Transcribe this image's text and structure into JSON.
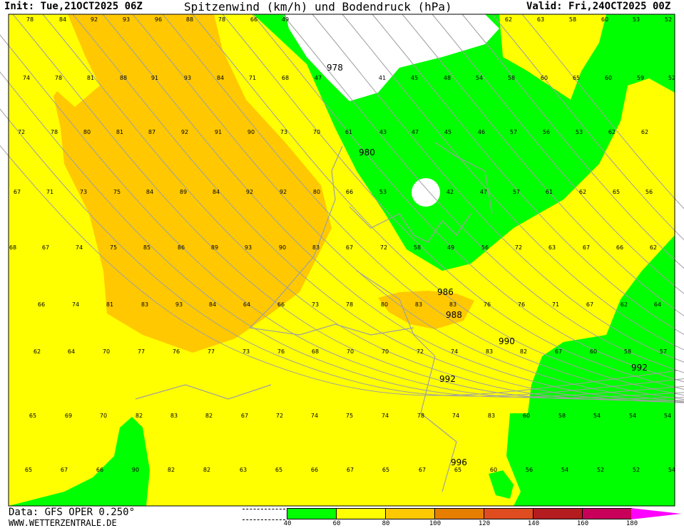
{
  "header": {
    "init": "Init: Tue,21OCT2025 06Z",
    "title": "Spitzenwind (km/h) und Bodendruck (hPa)",
    "valid": "Valid: Fri,24OCT2025 00Z"
  },
  "footer": {
    "data": "Data: GFS OPER 0.250°",
    "site": "WWW.WETTERZENTRALE.DE"
  },
  "legend": {
    "ticks": [
      "40",
      "60",
      "80",
      "100",
      "120",
      "140",
      "160",
      "180"
    ],
    "colors": [
      "#00ff00",
      "#ffff00",
      "#ffc800",
      "#e67e00",
      "#df4c20",
      "#b41c20",
      "#c8005a",
      "#ff00ff"
    ]
  },
  "map_colors": {
    "calm": "#ffffff",
    "green": "#00ff00",
    "yellow": "#ffff00",
    "orange": "#ffc800",
    "isobar": "#a0a0a0",
    "border": "#a0a0a0"
  },
  "isobar_labels": [
    "978",
    "980",
    "986",
    "988",
    "990",
    "992",
    "992",
    "996"
  ],
  "wind_rows": [
    [
      "78",
      "84",
      "92",
      "93",
      "96",
      "88",
      "78",
      "66",
      "49",
      "62",
      "63",
      "58",
      "60",
      "53",
      "52"
    ],
    [
      "74",
      "78",
      "81",
      "88",
      "91",
      "93",
      "84",
      "71",
      "68",
      "47",
      "41",
      "45",
      "48",
      "54",
      "58",
      "60",
      "65",
      "60",
      "59",
      "52"
    ],
    [
      "72",
      "78",
      "80",
      "81",
      "87",
      "92",
      "91",
      "90",
      "73",
      "70",
      "61",
      "43",
      "47",
      "45",
      "46",
      "57",
      "56",
      "53",
      "62",
      "62"
    ],
    [
      "67",
      "71",
      "73",
      "75",
      "84",
      "89",
      "84",
      "92",
      "92",
      "80",
      "66",
      "53",
      "42",
      "47",
      "57",
      "61",
      "62",
      "65",
      "56"
    ],
    [
      "68",
      "67",
      "74",
      "75",
      "85",
      "86",
      "89",
      "93",
      "90",
      "83",
      "67",
      "72",
      "58",
      "49",
      "56",
      "72",
      "63",
      "67",
      "66",
      "62"
    ],
    [
      "66",
      "74",
      "81",
      "83",
      "93",
      "84",
      "64",
      "66",
      "73",
      "78",
      "80",
      "83",
      "83",
      "76",
      "76",
      "71",
      "67",
      "62",
      "64"
    ],
    [
      "62",
      "64",
      "70",
      "77",
      "76",
      "77",
      "73",
      "76",
      "68",
      "70",
      "70",
      "72",
      "74",
      "83",
      "82",
      "67",
      "60",
      "58",
      "57"
    ],
    [
      "65",
      "69",
      "70",
      "82",
      "83",
      "82",
      "67",
      "72",
      "74",
      "75",
      "74",
      "78",
      "74",
      "83",
      "60",
      "58",
      "54",
      "54",
      "54"
    ],
    [
      "65",
      "67",
      "66",
      "90",
      "82",
      "82",
      "63",
      "65",
      "66",
      "67",
      "65",
      "67",
      "65",
      "60",
      "56",
      "54",
      "52",
      "52",
      "54"
    ]
  ]
}
